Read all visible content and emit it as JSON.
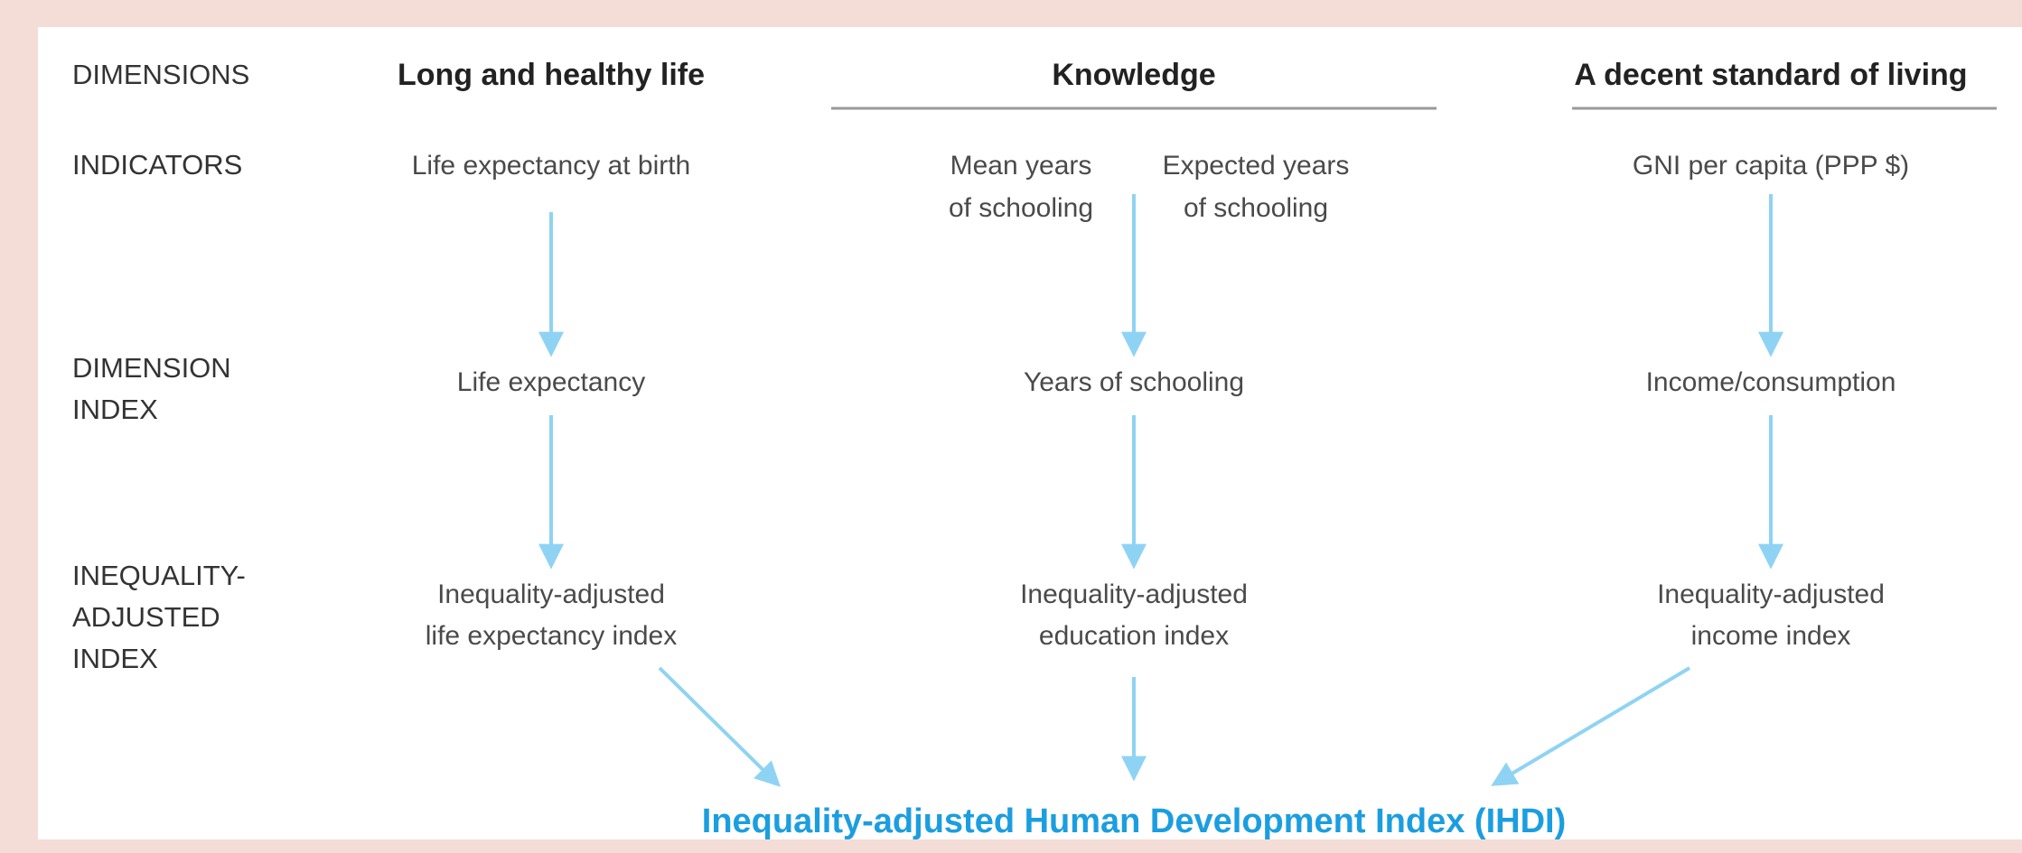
{
  "row_labels": [
    [
      "DIMENSIONS"
    ],
    [
      "INDICATORS"
    ],
    [
      "DIMENSION",
      "INDEX"
    ],
    [
      "INEQUALITY-",
      "ADJUSTED",
      "INDEX"
    ]
  ],
  "columns": [
    {
      "header": "Long and healthy life",
      "indicators": [
        [
          "Life expectancy at birth"
        ]
      ],
      "dimension_index": "Life expectancy",
      "adjusted_index": [
        "Inequality-adjusted",
        "life expectancy index"
      ]
    },
    {
      "header": "Knowledge",
      "indicators": [
        [
          "Mean years",
          "of schooling"
        ],
        [
          "Expected years",
          "of schooling"
        ]
      ],
      "dimension_index": "Years of schooling",
      "adjusted_index": [
        "Inequality-adjusted",
        "education index"
      ]
    },
    {
      "header": "A decent standard of living",
      "indicators": [
        [
          "GNI per capita (PPP $)"
        ]
      ],
      "dimension_index": "Income/consumption",
      "adjusted_index": [
        "Inequality-adjusted",
        "income index"
      ]
    }
  ],
  "result": "Inequality-adjusted Human Development Index (IHDI)"
}
